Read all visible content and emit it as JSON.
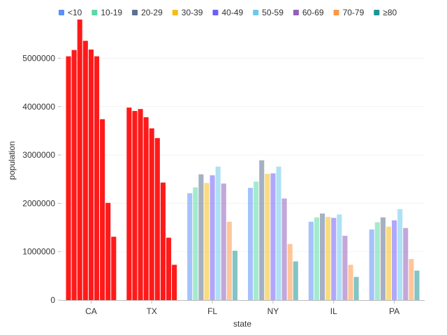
{
  "chart_data": {
    "type": "bar",
    "xlabel": "state",
    "ylabel": "population",
    "ylim": [
      0,
      5800000
    ],
    "yticks": [
      0,
      1000000,
      2000000,
      3000000,
      4000000,
      5000000
    ],
    "ytick_labels": [
      "0",
      "1000000",
      "2000000",
      "3000000",
      "4000000",
      "5000000"
    ],
    "grid": "horizontal",
    "legend_position": "top",
    "categories": [
      "CA",
      "TX",
      "FL",
      "NY",
      "IL",
      "PA"
    ],
    "highlighted_categories": [
      "CA",
      "TX"
    ],
    "highlight_color": "#ff1a1a",
    "faded_opacity": 0.55,
    "series": [
      {
        "name": "<10",
        "color": "#5b8ff9",
        "values": [
          5040000,
          3980000,
          2210000,
          2320000,
          1620000,
          1460000
        ]
      },
      {
        "name": "10-19",
        "color": "#5ad8a6",
        "values": [
          5170000,
          3910000,
          2330000,
          2450000,
          1710000,
          1610000
        ]
      },
      {
        "name": "20-29",
        "color": "#5d7092",
        "values": [
          5800000,
          3950000,
          2600000,
          2890000,
          1790000,
          1710000
        ]
      },
      {
        "name": "30-39",
        "color": "#f6bd16",
        "values": [
          5360000,
          3780000,
          2420000,
          2610000,
          1720000,
          1520000
        ]
      },
      {
        "name": "40-49",
        "color": "#6f5ef9",
        "values": [
          5180000,
          3550000,
          2580000,
          2620000,
          1700000,
          1650000
        ]
      },
      {
        "name": "50-59",
        "color": "#6dc8ec",
        "values": [
          5040000,
          3350000,
          2760000,
          2760000,
          1770000,
          1880000
        ]
      },
      {
        "name": "60-69",
        "color": "#945fb9",
        "values": [
          3740000,
          2430000,
          2410000,
          2100000,
          1330000,
          1490000
        ]
      },
      {
        "name": "70-79",
        "color": "#ff9845",
        "values": [
          2010000,
          1290000,
          1620000,
          1160000,
          730000,
          850000
        ]
      },
      {
        "name": "≥80",
        "color": "#1e9493",
        "values": [
          1310000,
          730000,
          1020000,
          800000,
          480000,
          610000
        ]
      }
    ]
  }
}
